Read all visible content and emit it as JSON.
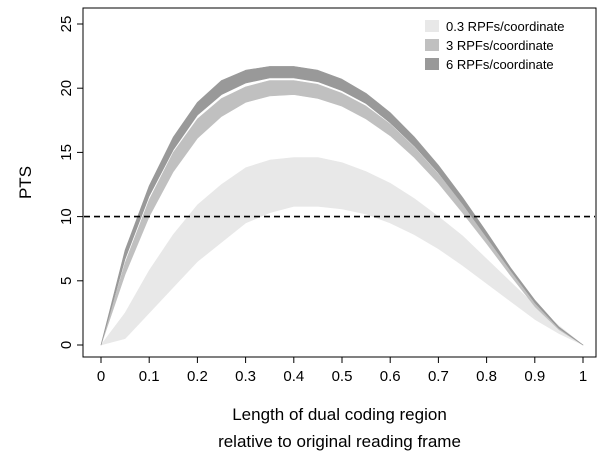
{
  "chart_data": {
    "type": "area",
    "xlabel": [
      "Length of dual coding region",
      "relative to original reading frame"
    ],
    "ylabel": "PTS",
    "xlim": [
      0,
      1
    ],
    "ylim": [
      0,
      25
    ],
    "x_ticks": [
      0,
      0.1,
      0.2,
      0.3,
      0.4,
      0.5,
      0.6,
      0.7,
      0.8,
      0.9,
      1
    ],
    "x_tick_labels": [
      "0",
      "0.1",
      "0.2",
      "0.3",
      "0.4",
      "0.5",
      "0.6",
      "0.7",
      "0.8",
      "0.9",
      "1"
    ],
    "y_ticks": [
      0,
      5,
      10,
      15,
      20,
      25
    ],
    "y_tick_labels": [
      "0",
      "5",
      "10",
      "15",
      "20",
      "25"
    ],
    "grid": false,
    "legend_position": "top-right",
    "x": [
      0,
      0.05,
      0.1,
      0.15,
      0.2,
      0.25,
      0.3,
      0.35,
      0.4,
      0.45,
      0.5,
      0.55,
      0.6,
      0.65,
      0.7,
      0.75,
      0.8,
      0.85,
      0.9,
      0.95,
      1
    ],
    "series": [
      {
        "name": "0.3 RPFs/coordinate",
        "color": "#e8e8e8",
        "lower": [
          0,
          0.5,
          2.5,
          4.5,
          6.5,
          8.0,
          9.5,
          10.3,
          10.8,
          10.8,
          10.6,
          10.2,
          9.5,
          8.6,
          7.5,
          6.2,
          4.8,
          3.4,
          2.0,
          0.9,
          0
        ],
        "upper": [
          0,
          2.5,
          5.8,
          8.6,
          10.9,
          12.5,
          13.8,
          14.4,
          14.6,
          14.6,
          14.2,
          13.5,
          12.6,
          11.4,
          10.0,
          8.5,
          6.7,
          4.9,
          3.1,
          1.5,
          0
        ]
      },
      {
        "name": "3 RPFs/coordinate",
        "color": "#c0c0c0",
        "lower": [
          0,
          5.5,
          10.0,
          13.5,
          16.1,
          17.8,
          18.9,
          19.4,
          19.5,
          19.2,
          18.6,
          17.6,
          16.3,
          14.6,
          12.6,
          10.3,
          7.9,
          5.4,
          3.0,
          1.2,
          0
        ],
        "upper": [
          0,
          6.4,
          11.3,
          15.0,
          17.6,
          19.2,
          20.1,
          20.6,
          20.6,
          20.3,
          19.6,
          18.6,
          17.2,
          15.4,
          13.3,
          11.0,
          8.4,
          5.8,
          3.3,
          1.3,
          0
        ]
      },
      {
        "name": "6 RPFs/coordinate",
        "color": "#999999",
        "lower": [
          0,
          6.7,
          11.6,
          15.2,
          17.9,
          19.5,
          20.4,
          20.8,
          20.8,
          20.5,
          19.8,
          18.8,
          17.3,
          15.5,
          13.4,
          11.0,
          8.4,
          5.8,
          3.3,
          1.3,
          0
        ],
        "upper": [
          0,
          7.4,
          12.4,
          16.2,
          18.9,
          20.6,
          21.4,
          21.7,
          21.7,
          21.4,
          20.7,
          19.6,
          18.1,
          16.2,
          14.0,
          11.5,
          8.8,
          6.0,
          3.5,
          1.4,
          0
        ]
      }
    ],
    "reference_line": {
      "y": 10,
      "style": "dashed"
    }
  }
}
